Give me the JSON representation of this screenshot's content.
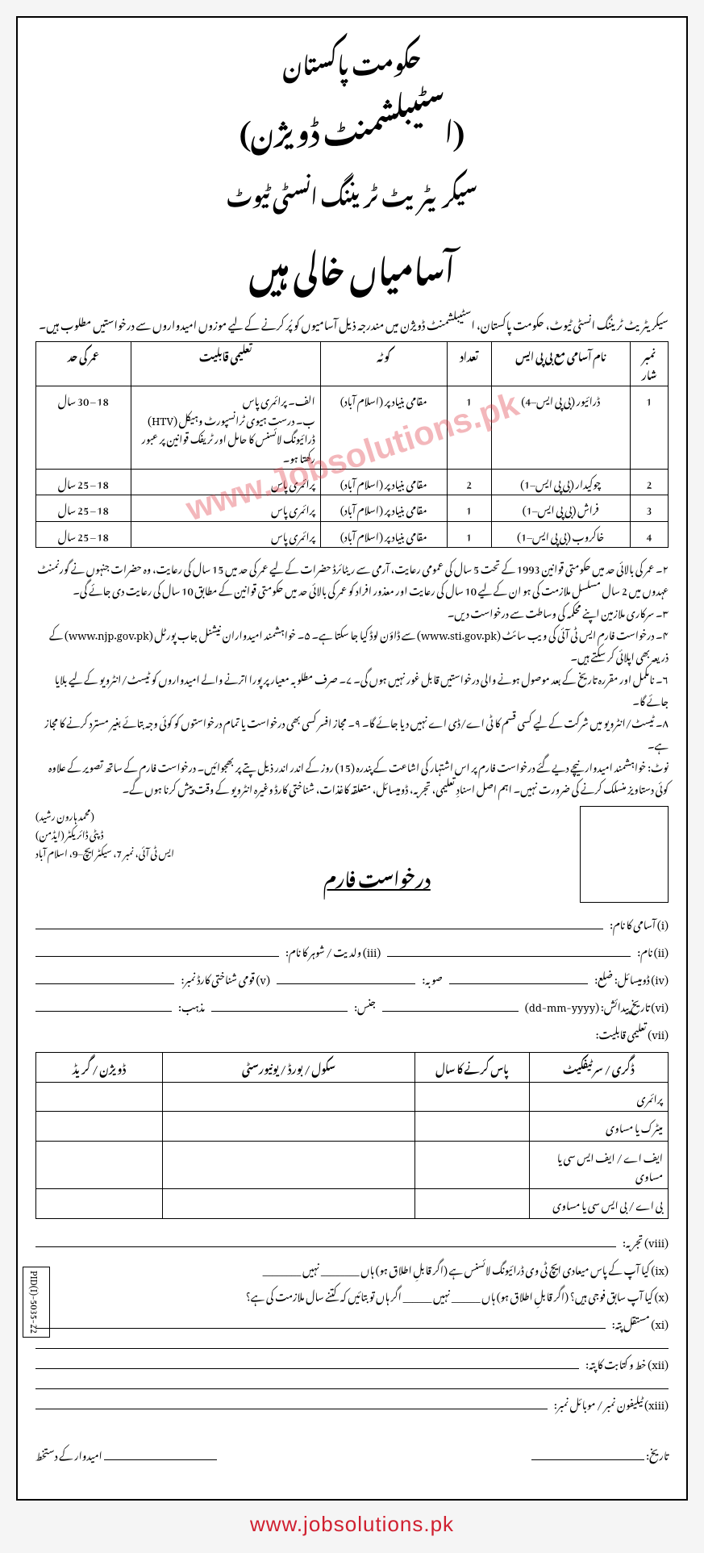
{
  "header": {
    "line1": "حکومت پاکستان",
    "line2": "(اسٹیبلشمنٹ ڈویژن)",
    "line3": "سیکریٹریٹ ٹریننگ انسٹی ٹیوٹ",
    "line4": "آسامیاں خالی ہیں"
  },
  "intro": "سیکریٹریٹ ٹریننگ انسٹی ٹیوٹ، حکومت پاکستان، اسٹیبلشمنٹ ڈویژن میں مندرجہ ذیل آسامیوں کو پُر کرنے کے لیے موزوں امیدواروں سے درخواستیں مطلوب ہیں۔",
  "jobs_table": {
    "columns": [
      "نمبر شار",
      "نام آسامی مع بی پی ایس",
      "تعداد",
      "کوٹہ",
      "تعلیمی قابلیت",
      "عمر کی حد"
    ],
    "rows": [
      {
        "sr": "1",
        "post": "ڈرائیور (بی پی ایس–4)",
        "count": "1",
        "quota": "مقامی بنیاد پر (اسلام آباد)",
        "qual": "الف۔ پرائمری پاس\nب۔ درست ہیوی ٹرانسپورٹ وہیکل (HTV) ڈرائیونگ لائسنس کا حامل اور ٹریفک قوانین پر عبور رکھتا ہو۔",
        "age": "18 – 30 سال"
      },
      {
        "sr": "2",
        "post": "چوکیدار (بی پی ایس–1)",
        "count": "2",
        "quota": "مقامی بنیاد پر (اسلام آباد)",
        "qual": "پرائمری پاس",
        "age": "18 – 25 سال"
      },
      {
        "sr": "3",
        "post": "فراش (بی پی ایس–1)",
        "count": "1",
        "quota": "مقامی بنیاد پر (اسلام آباد)",
        "qual": "پرائمری پاس",
        "age": "18 – 25 سال"
      },
      {
        "sr": "4",
        "post": "خاکروب (بی پی ایس–1)",
        "count": "1",
        "quota": "مقامی بنیاد پر (اسلام آباد)",
        "qual": "پرائمری پاس",
        "age": "18 – 25 سال"
      }
    ]
  },
  "notes": [
    "۲۔ عمر کی بالائی حد میں حکومتی قوانین 1993 کے تحت 5 سال کی عمومی رعایت، آرمی سے ریٹائرڈ حضرات کے لیے عمر کی حد میں 15 سال کی رعایت، وہ حضرات جنہوں نے گورنمنٹ عہدوں میں 2 سال مسلسل ملازمت کی ہو ان کے لیے 10 سال کی رعایت اور معذور افراد کو عمر کی بالائی حد میں حکومتی قوانین کے مطابق 10 سال کی رعایت دی جائے گی۔",
    "۳۔ سرکاری ملازمین اپنے محکمہ کی وساطت سے درخواست دیں۔",
    "۴۔ درخواست فارم ایس ٹی آئی کی ویب سائٹ (www.sti.gov.pk) سے ڈاؤن لوڈ کیا جا سکتا ہے۔   ۵۔ خواہشمند امیدواران نیشنل جاب پورٹل (www.njp.gov.pk) کے ذریعہ بھی اپلائی کر سکتے ہیں۔",
    "۶۔ نامکمل اور مقررہ تاریخ کے بعد موصول ہونے والی درخواستیں قابل غور نہیں ہوں گی۔   ۷۔ صرف مطلوبہ معیار پر پورا اترنے والے امیدواروں کو ٹیسٹ/انٹرویو کے لیے بلایا جائے گا۔",
    "۸۔ ٹیسٹ/انٹرویو میں شرکت کے لیے کسی قسم کا ٹی اے/ڈی اے نہیں دیا جائے گا۔   ۹۔ مجاز افسر کسی بھی درخواست یا تمام درخواستوں کو کوئی وجہ بتائے بغیر مسترد کرنے کا مجاز ہے۔",
    "نوٹ: خواہشمند امیدوار نیچے دیے گئے درخواست فارم پر اس اشتہار کی اشاعت کے پندرہ (15) روز کے اندر اندر ذیل پتے پر بھجوائیں۔ درخواست فارم کے ساتھ تصویر کے علاوہ کوئی دستاویز منسلک کرنے کی ضرورت نہیں۔ اہم اصل اسنادِ تعلیمی، تجربہ، ڈومیسائل، متعلقہ کاغذات، شناختی کارڈ وغیرہ انٹرویو کے وقت پیش کرنا ہوں گے۔"
  ],
  "signatory": {
    "name": "(محمد ہارون رشید)",
    "title": "ڈپٹی ڈائریکٹر (ایڈمن)",
    "address": "ایس ٹی آئی، نمبر 7، سیکٹر ایچ–9، اسلام آباد"
  },
  "application_title": "درخواست فارم",
  "form": {
    "i": "(i)  آسامی کا نام:",
    "ii": "(ii)  نام:",
    "iii": "(iii)  ولدیت / شوہر کا نام:",
    "iv": "(iv)  ڈومیسائل: ضلع:",
    "iv_b": "صوبہ:",
    "v": "(v)  قومی شناختی کارڈ نمبر:",
    "vi": "(vi)  تاریخ پیدائش: (dd-mm-yyyy)",
    "vi_b": "جنس:",
    "vi_c": "مذہب:",
    "vii": "(vii)  تعلیمی قابلیت:"
  },
  "edu_table": {
    "columns": [
      "ڈگری / سرٹیفکیٹ",
      "پاس کرنے کا سال",
      "سکول / بورڈ / یونیورسٹی",
      "ڈویژن / گریڈ"
    ],
    "rows": [
      "پرائمری",
      "میٹرک یا مساوی",
      "ایف اے / ایف ایس سی یا مساوی",
      "بی اے / بی ایس سی یا مساوی"
    ]
  },
  "extra": {
    "viii": "(viii)  تجربہ:",
    "ix": "(ix)  کیا آپ کے پاس میعادی ایچ ٹی وی ڈرائیونگ لائسنس ہے (اگر قابلِ اطلاق ہو)  ہاں ________ نہیں ________",
    "x": "(x)  کیا آپ سابق فوجی ہیں؟ (اگر قابلِ اطلاق ہو)  ہاں ______ نہیں ______ اگر ہاں تو بتائیں کہ کتنے سال ملازمت کی ہے؟",
    "xi": "(xi)  مستقل پتہ:",
    "xii": "(xii)  خط و کتابت کا پتہ:",
    "xiii": "(xiii)  ٹیلیفون نمبر / موبائل نمبر:",
    "date": "تاریخ:",
    "applicant_sig": "امیدوار کے دستخط"
  },
  "pid": "PID(I)-5035-22",
  "watermark": "www.Jobsolutions.pk",
  "footer_url": "www.jobsolutions.pk",
  "colors": {
    "border": "#000000",
    "bg": "#ffffff",
    "watermark": "rgba(220,50,60,0.35)",
    "footer": "#d02030"
  }
}
